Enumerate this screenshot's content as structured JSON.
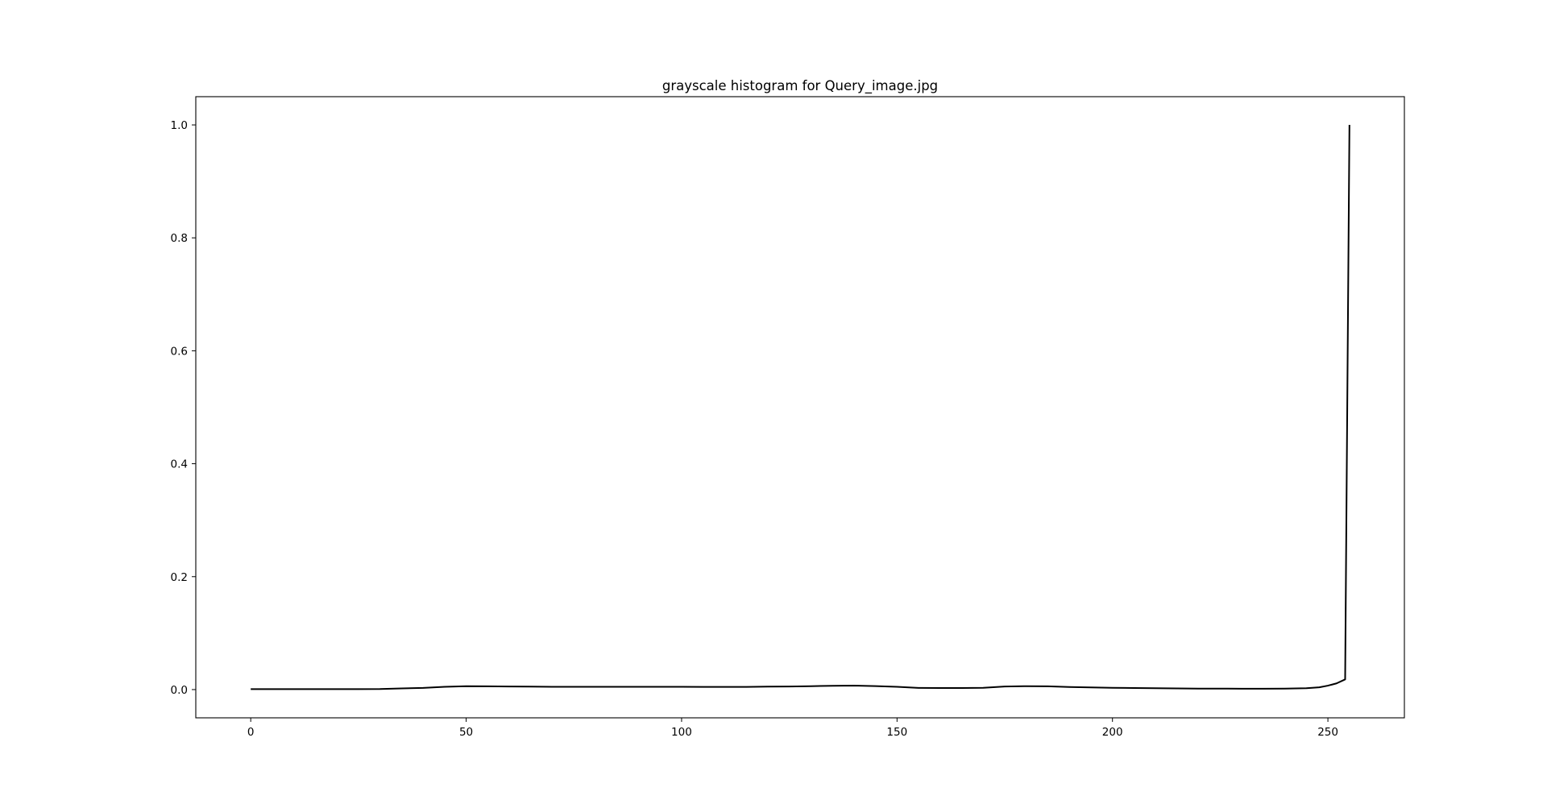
{
  "chart_data": {
    "type": "line",
    "title": "grayscale histogram for Query_image.jpg",
    "xlabel": "",
    "ylabel": "",
    "xlim": [
      -12.75,
      267.75
    ],
    "ylim": [
      -0.05,
      1.05
    ],
    "xticks": [
      0,
      50,
      100,
      150,
      200,
      250
    ],
    "yticks": [
      0.0,
      0.2,
      0.4,
      0.6,
      0.8,
      1.0
    ],
    "xtick_labels": [
      "0",
      "50",
      "100",
      "150",
      "200",
      "250"
    ],
    "ytick_labels": [
      "0.0",
      "0.2",
      "0.4",
      "0.6",
      "0.8",
      "1.0"
    ],
    "grid": false,
    "legend": "none",
    "series": [
      {
        "color": "#000000",
        "points": [
          [
            0,
            0.0008
          ],
          [
            10,
            0.0008
          ],
          [
            20,
            0.0008
          ],
          [
            25,
            0.0009
          ],
          [
            30,
            0.001
          ],
          [
            35,
            0.002
          ],
          [
            40,
            0.003
          ],
          [
            45,
            0.005
          ],
          [
            50,
            0.006
          ],
          [
            55,
            0.0058
          ],
          [
            60,
            0.0055
          ],
          [
            65,
            0.0052
          ],
          [
            70,
            0.005
          ],
          [
            75,
            0.005
          ],
          [
            80,
            0.005
          ],
          [
            85,
            0.005
          ],
          [
            90,
            0.0049
          ],
          [
            95,
            0.0049
          ],
          [
            100,
            0.0049
          ],
          [
            105,
            0.0048
          ],
          [
            110,
            0.0048
          ],
          [
            115,
            0.0048
          ],
          [
            120,
            0.0052
          ],
          [
            125,
            0.0055
          ],
          [
            130,
            0.006
          ],
          [
            135,
            0.0068
          ],
          [
            140,
            0.007
          ],
          [
            145,
            0.0062
          ],
          [
            150,
            0.005
          ],
          [
            155,
            0.003
          ],
          [
            160,
            0.0028
          ],
          [
            165,
            0.0028
          ],
          [
            170,
            0.0032
          ],
          [
            175,
            0.0055
          ],
          [
            180,
            0.006
          ],
          [
            185,
            0.0058
          ],
          [
            190,
            0.0045
          ],
          [
            195,
            0.0038
          ],
          [
            200,
            0.0032
          ],
          [
            205,
            0.0028
          ],
          [
            210,
            0.0025
          ],
          [
            215,
            0.002
          ],
          [
            220,
            0.0018
          ],
          [
            225,
            0.0018
          ],
          [
            230,
            0.0016
          ],
          [
            235,
            0.0016
          ],
          [
            240,
            0.0018
          ],
          [
            245,
            0.0025
          ],
          [
            248,
            0.004
          ],
          [
            250,
            0.007
          ],
          [
            252,
            0.011
          ],
          [
            254,
            0.018
          ],
          [
            255,
            1.0
          ]
        ]
      }
    ]
  }
}
